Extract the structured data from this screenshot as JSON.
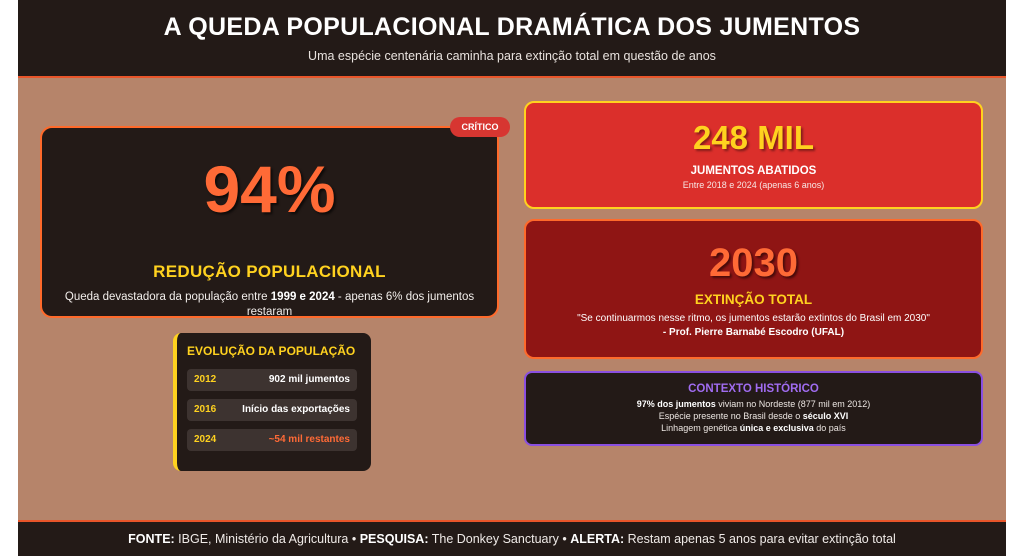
{
  "header": {
    "title": "A QUEDA POPULACIONAL DRAMÁTICA DOS JUMENTOS",
    "subtitle": "Uma espécie centenária caminha para extinção total em questão de anos"
  },
  "main_card": {
    "badge": "CRÍTICO",
    "value": "94%",
    "title": "REDUÇÃO POPULACIONAL",
    "desc_before": "Queda devastadora da população entre ",
    "desc_bold": "1999 e 2024",
    "desc_after": " - apenas 6% dos jumentos restaram"
  },
  "evolution": {
    "title": "EVOLUÇÃO DA POPULAÇÃO",
    "rows": [
      {
        "year": "2012",
        "value": "902 mil jumentos"
      },
      {
        "year": "2016",
        "value": "Início das exportações"
      },
      {
        "year": "2024",
        "value": "~54 mil restantes"
      }
    ]
  },
  "slaughter_card": {
    "value": "248 MIL",
    "title": "JUMENTOS ABATIDOS",
    "subtitle": "Entre 2018 e 2024 (apenas 6 anos)"
  },
  "extinction_card": {
    "value": "2030",
    "title": "EXTINÇÃO TOTAL",
    "quote": "\"Se continuarmos nesse ritmo, os jumentos estarão extintos do Brasil em 2030\"",
    "author": "- Prof. Pierre Barnabé Escodro (UFAL)"
  },
  "context_card": {
    "title": "CONTEXTO HISTÓRICO",
    "line1_bold": "97% dos jumentos",
    "line1_rest": " viviam no Nordeste (877 mil em 2012)",
    "line2_before": "Espécie presente no Brasil desde o ",
    "line2_bold": "século XVI",
    "line3_before": "Linhagem genética ",
    "line3_bold": "única e exclusiva",
    "line3_after": " do país"
  },
  "footer": {
    "fonte_label": "FONTE:",
    "fonte_text": " IBGE, Ministério da Agricultura • ",
    "pesquisa_label": "PESQUISA:",
    "pesquisa_text": " The Donkey Sanctuary • ",
    "alerta_label": "ALERTA:",
    "alerta_text": " Restam apenas 5 anos para evitar extinção total"
  },
  "colors": {
    "background": "#b6846a",
    "dark": "#231a17",
    "orange": "#ff6a36",
    "yellow": "#ffd21f",
    "red": "#db2f2b",
    "dark_red": "#8f1514",
    "purple": "#a06cf0"
  }
}
